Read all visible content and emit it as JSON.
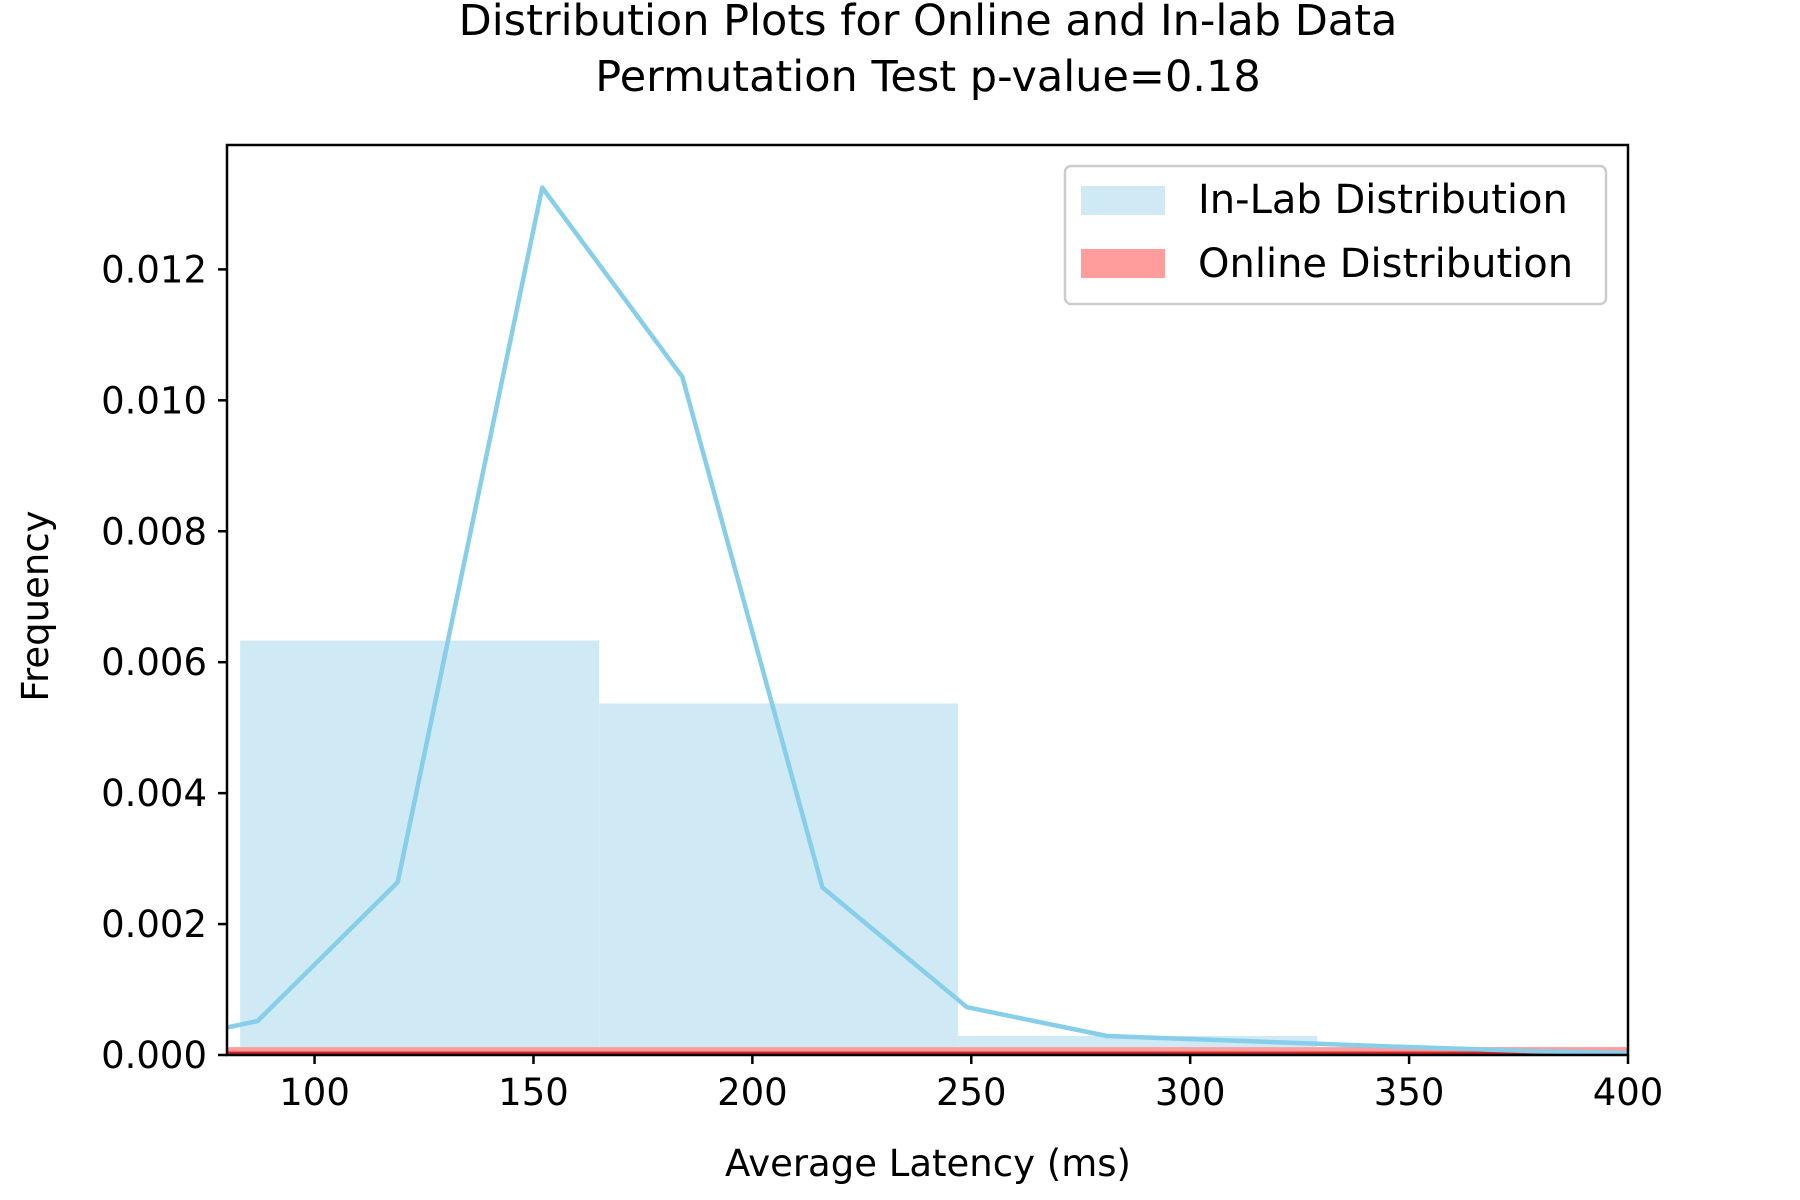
{
  "chart_data": {
    "type": "histogram-with-line",
    "title": "Distribution Plots for Online and In-lab Data",
    "subtitle": "Permutation Test p-value=0.18",
    "xlabel": "Average Latency (ms)",
    "ylabel": "Frequency",
    "xlim": [
      80,
      400
    ],
    "ylim": [
      0,
      0.0139
    ],
    "x_ticks": [
      100,
      150,
      200,
      250,
      300,
      350,
      400
    ],
    "x_tick_labels": [
      "100",
      "150",
      "200",
      "250",
      "300",
      "350",
      "400"
    ],
    "y_ticks": [
      0,
      0.002,
      0.004,
      0.006,
      0.008,
      0.01,
      0.012
    ],
    "y_tick_labels": [
      "0.000",
      "0.002",
      "0.004",
      "0.006",
      "0.008",
      "0.010",
      "0.012"
    ],
    "grid": false,
    "legend": {
      "placement": "top-right",
      "entries": [
        {
          "label": "In-Lab Distribution",
          "color": "#cfe9f5"
        },
        {
          "label": "Online Distribution",
          "color": "#ff9c9c"
        }
      ]
    },
    "inlab_histogram": {
      "color": "#cfe9f5",
      "bins": [
        {
          "x0": 83,
          "x1": 165,
          "value": 0.00633
        },
        {
          "x0": 165,
          "x1": 247,
          "value": 0.00537
        },
        {
          "x0": 247,
          "x1": 329,
          "value": 0.00029
        },
        {
          "x0": 329,
          "x1": 411,
          "value": 0.00012
        }
      ]
    },
    "online_histogram": {
      "color": "#ff9c9c",
      "edge_color": "#d62728",
      "bins": [
        {
          "x0": 80,
          "x1": 400,
          "value": 0.00012
        }
      ]
    },
    "inlab_line": {
      "color": "#87ceeb",
      "x": [
        80,
        87,
        119,
        152,
        184,
        216,
        249,
        281,
        314,
        346,
        378,
        400
      ],
      "y": [
        0.00042,
        0.00052,
        0.00264,
        0.01325,
        0.01036,
        0.00256,
        0.00073,
        0.00029,
        0.00021,
        0.00013,
        6e-05,
        3e-05
      ]
    }
  }
}
